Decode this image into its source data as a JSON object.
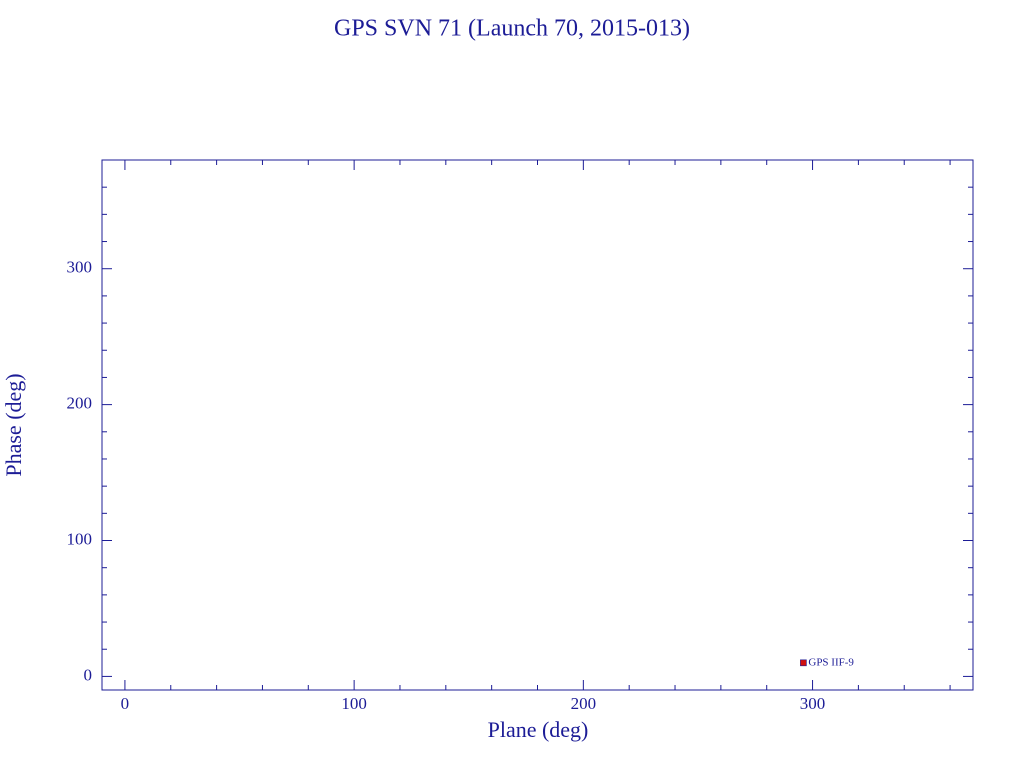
{
  "chart_data": {
    "type": "scatter",
    "title": "GPS SVN 71 (Launch 70, 2015-013)",
    "x_label": "Plane (deg)",
    "y_label": "Phase (deg)",
    "xlim": [
      -10,
      370
    ],
    "ylim": [
      -10,
      380
    ],
    "xticks": [
      0,
      100,
      200,
      300
    ],
    "yticks": [
      0,
      100,
      200,
      300
    ],
    "xminorticks": [
      20,
      40,
      60,
      80,
      120,
      140,
      160,
      180,
      220,
      240,
      260,
      280,
      320,
      340,
      360
    ],
    "yminorticks": [
      20,
      40,
      60,
      80,
      120,
      140,
      160,
      180,
      220,
      240,
      260,
      280,
      320,
      340,
      360
    ],
    "axis_color": "#1c1c96",
    "series": [
      {
        "color": "#d01010",
        "x": [
          296
        ],
        "y": [
          10
        ],
        "point_labels": [
          "GPS IIF-9"
        ]
      }
    ]
  }
}
